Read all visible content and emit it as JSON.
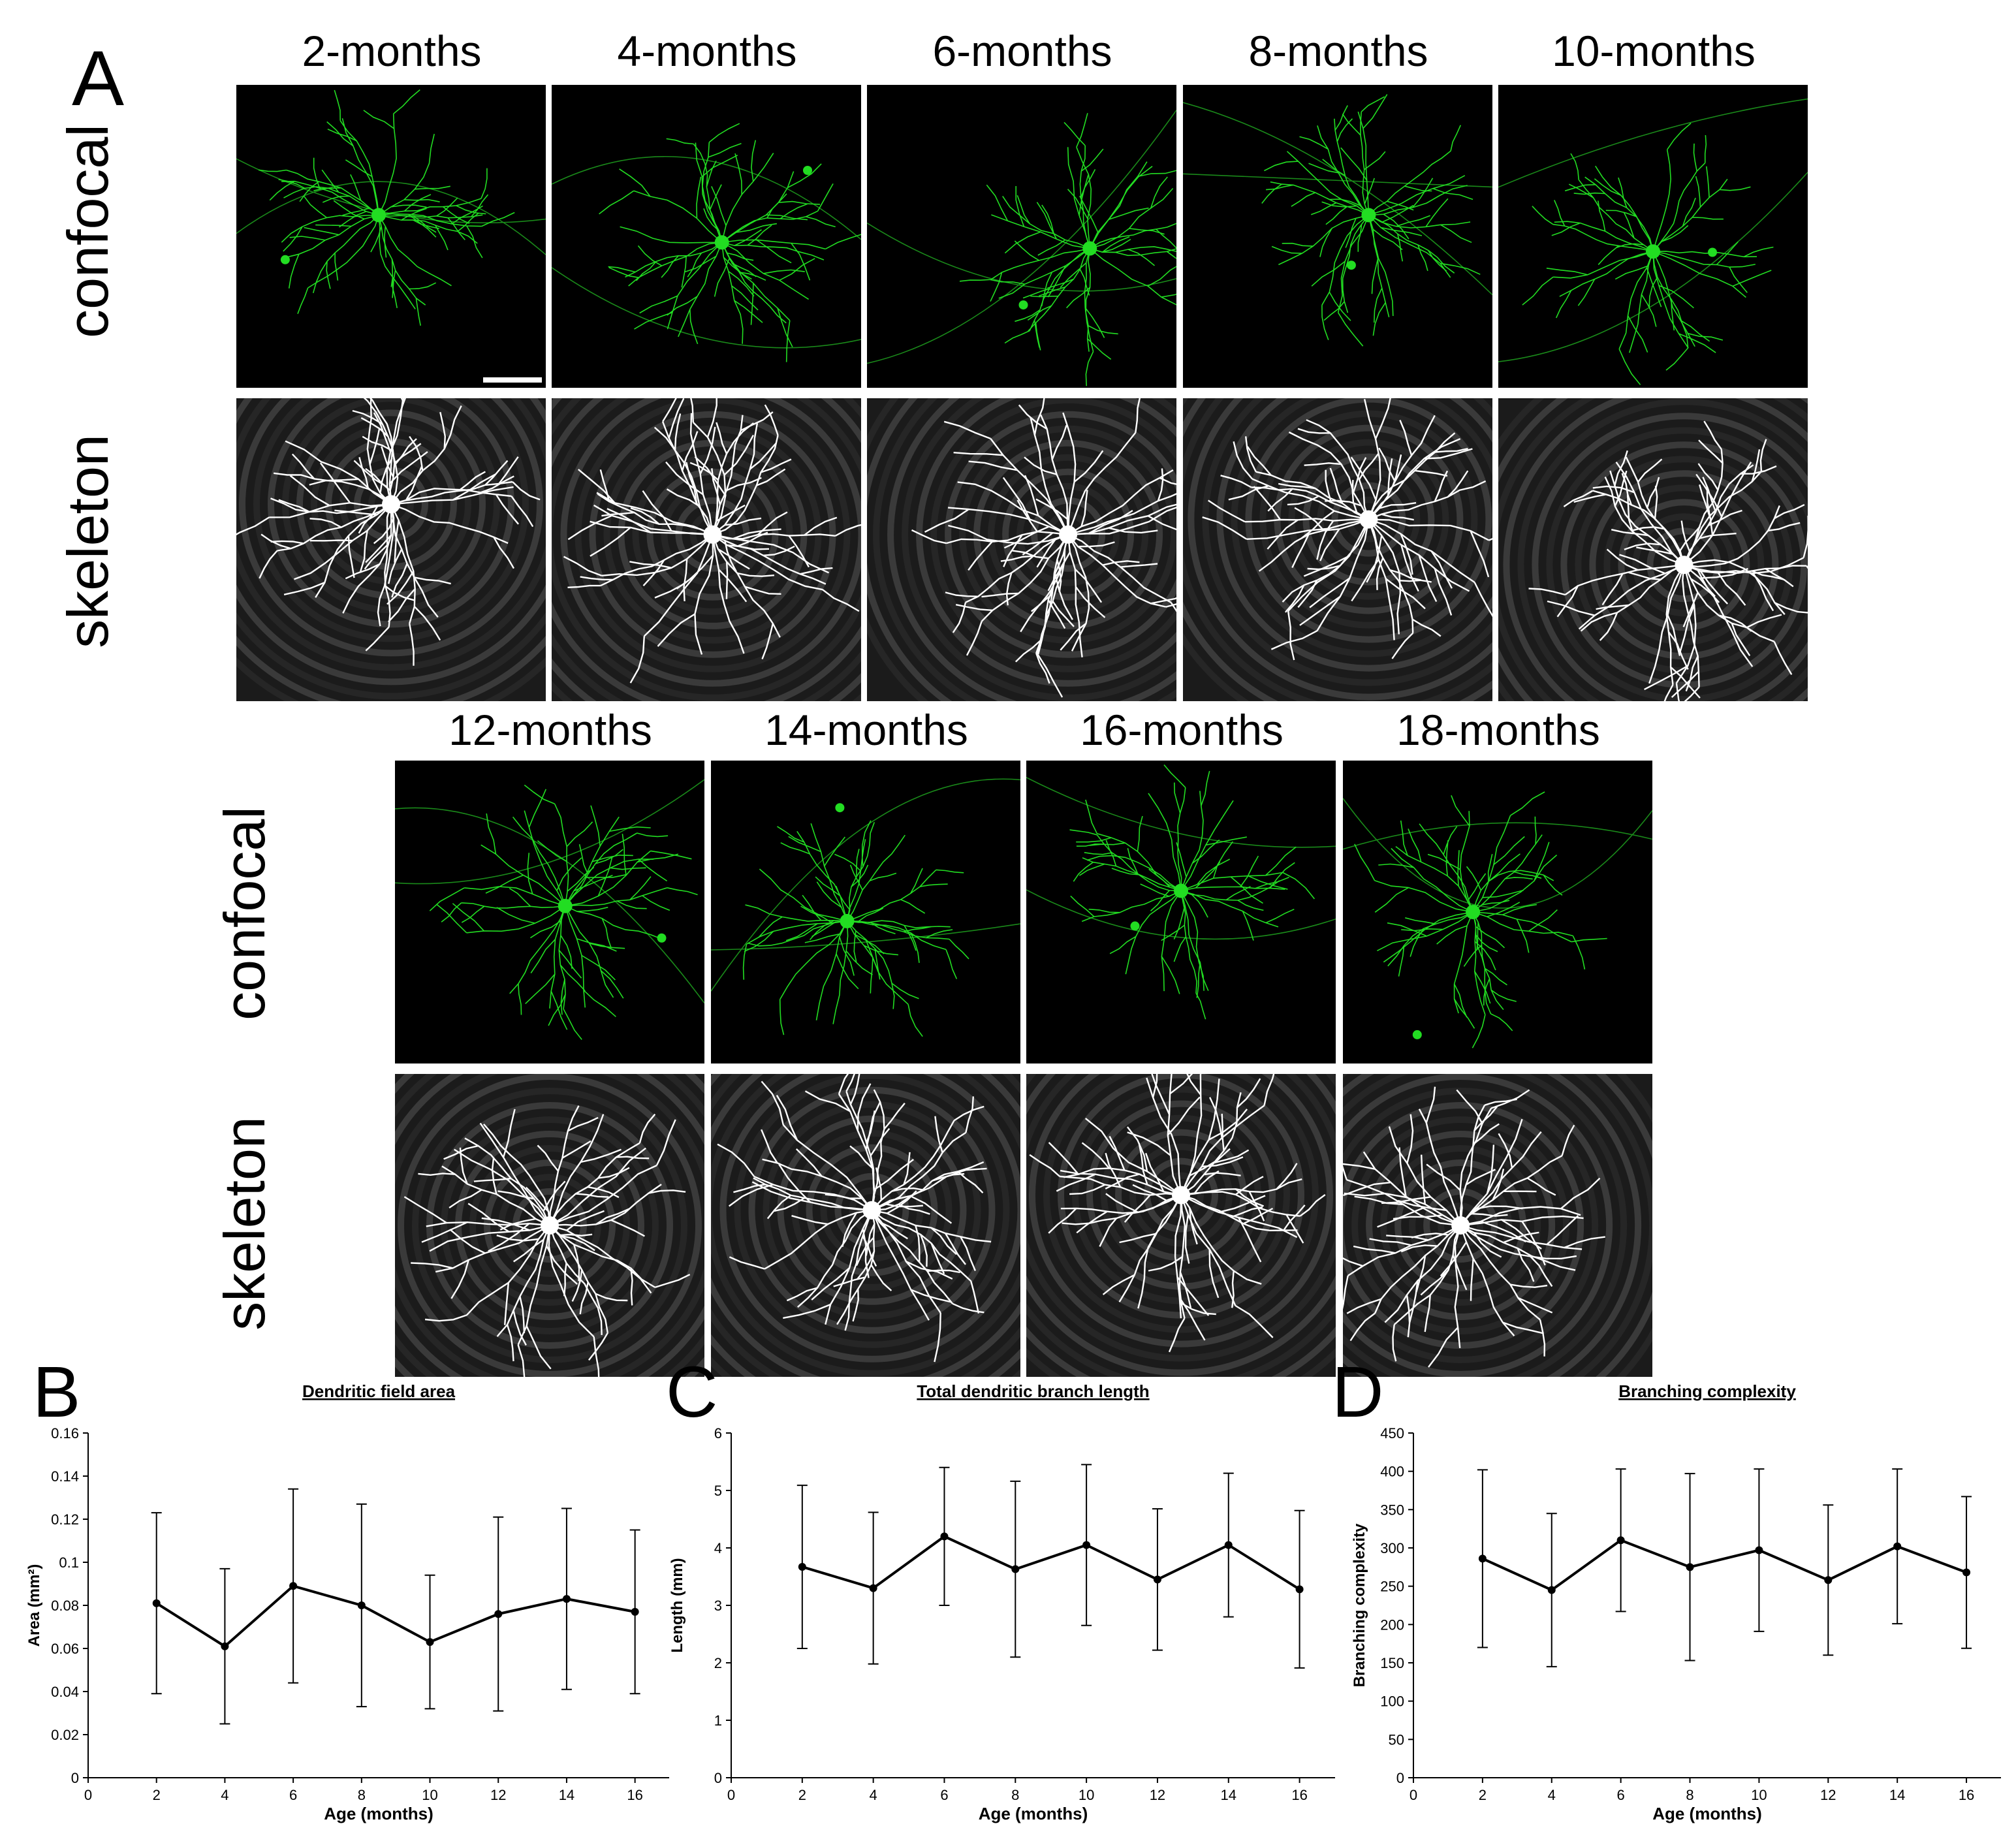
{
  "panel_letters": {
    "a": "A",
    "b": "B",
    "c": "C",
    "d": "D"
  },
  "row_labels": {
    "confocal": "confocal",
    "skeleton": "skeleton"
  },
  "ages_row1": [
    "2-months",
    "4-months",
    "6-months",
    "8-months",
    "10-months"
  ],
  "ages_row2": [
    "12-months",
    "14-months",
    "16-months",
    "18-months"
  ],
  "colors": {
    "neuron": "#22dd22",
    "skeleton": "#ffffff",
    "line": "#000000"
  },
  "chart_data": [
    {
      "type": "line",
      "panel": "B",
      "title": "Dendritic field area",
      "xlabel": "Age (months)",
      "ylabel": "Area (mm²)",
      "x": [
        2,
        4,
        6,
        8,
        10,
        12,
        14,
        16
      ],
      "values": [
        0.081,
        0.061,
        0.089,
        0.08,
        0.063,
        0.076,
        0.083,
        0.077
      ],
      "errors": [
        0.042,
        0.036,
        0.045,
        0.047,
        0.031,
        0.045,
        0.042,
        0.038
      ],
      "xlim": [
        0,
        17
      ],
      "ylim": [
        0,
        0.16
      ],
      "xticks": [
        0,
        2,
        4,
        6,
        8,
        10,
        12,
        14,
        16
      ],
      "yticks": [
        "0",
        "0.02",
        "0.04",
        "0.06",
        "0.08",
        "0.1",
        "0.12",
        "0.14",
        "0.16"
      ],
      "ytick_values": [
        0,
        0.02,
        0.04,
        0.06,
        0.08,
        0.1,
        0.12,
        0.14,
        0.16
      ],
      "grid": false
    },
    {
      "type": "line",
      "panel": "C",
      "title": "Total dendritic branch length",
      "xlabel": "Age (months)",
      "ylabel": "Length (mm)",
      "x": [
        2,
        4,
        6,
        8,
        10,
        12,
        14,
        16
      ],
      "values": [
        3.67,
        3.3,
        4.2,
        3.63,
        4.05,
        3.45,
        4.05,
        3.28
      ],
      "errors": [
        1.42,
        1.32,
        1.2,
        1.53,
        1.4,
        1.23,
        1.25,
        1.37
      ],
      "xlim": [
        0,
        17
      ],
      "ylim": [
        0,
        6
      ],
      "xticks": [
        0,
        2,
        4,
        6,
        8,
        10,
        12,
        14,
        16
      ],
      "yticks": [
        "0",
        "1",
        "2",
        "3",
        "4",
        "5",
        "6"
      ],
      "ytick_values": [
        0,
        1,
        2,
        3,
        4,
        5,
        6
      ],
      "grid": false
    },
    {
      "type": "line",
      "panel": "D",
      "title": "Branching complexity",
      "xlabel": "Age (months)",
      "ylabel": "Branching complexity",
      "x": [
        2,
        4,
        6,
        8,
        10,
        12,
        14,
        16
      ],
      "values": [
        286,
        245,
        310,
        275,
        297,
        258,
        302,
        268
      ],
      "errors": [
        116,
        100,
        93,
        122,
        106,
        98,
        101,
        99
      ],
      "xlim": [
        0,
        17
      ],
      "ylim": [
        0,
        450
      ],
      "xticks": [
        0,
        2,
        4,
        6,
        8,
        10,
        12,
        14,
        16
      ],
      "yticks": [
        "0",
        "50",
        "100",
        "150",
        "200",
        "250",
        "300",
        "350",
        "400",
        "450"
      ],
      "ytick_values": [
        0,
        50,
        100,
        150,
        200,
        250,
        300,
        350,
        400,
        450
      ],
      "grid": false
    }
  ]
}
